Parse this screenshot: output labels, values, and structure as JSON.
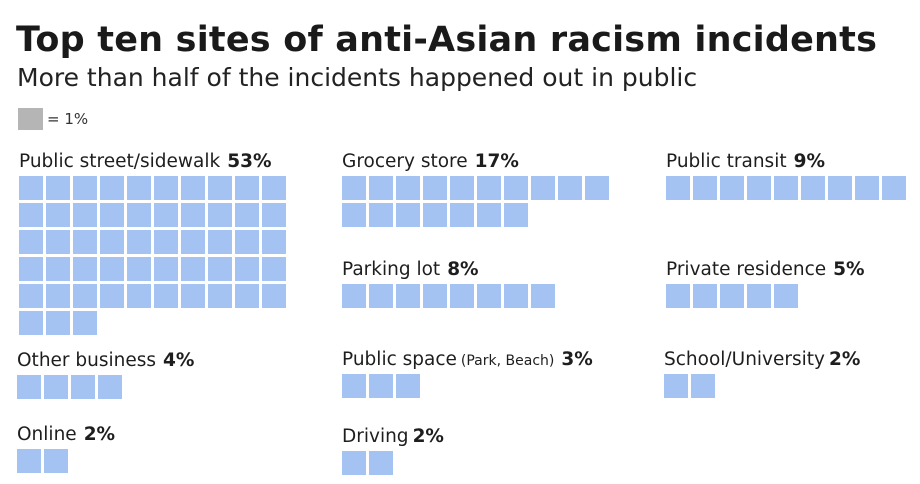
{
  "title": "Top ten sites of anti-Asian racism incidents",
  "subtitle": "More than half of the incidents happened out in public",
  "legend": {
    "swatch_color": "#b5b5b5",
    "text": "= 1%"
  },
  "square_color": "#a4c2f2",
  "chart_data": {
    "type": "waffle",
    "title": "Top ten sites of anti-Asian racism incidents",
    "subtitle": "More than half of the incidents happened out in public",
    "unit": "1 square = 1%",
    "categories": [
      {
        "label": "Public street/sidewalk",
        "note": "",
        "pct_label": "53%",
        "value": 53
      },
      {
        "label": "Grocery store",
        "note": "",
        "pct_label": "17%",
        "value": 17
      },
      {
        "label": "Public transit",
        "note": "",
        "pct_label": "9%",
        "value": 9
      },
      {
        "label": "Parking lot",
        "note": "",
        "pct_label": "8%",
        "value": 8
      },
      {
        "label": "Private residence",
        "note": "",
        "pct_label": "5%",
        "value": 5
      },
      {
        "label": "Other business",
        "note": "",
        "pct_label": "4%",
        "value": 4
      },
      {
        "label": "Public space",
        "note": "(Park, Beach)",
        "pct_label": "3%",
        "value": 3
      },
      {
        "label": "School/University",
        "note": "",
        "pct_label": "2%",
        "value": 2
      },
      {
        "label": "Online",
        "note": "",
        "pct_label": "2%",
        "value": 2
      },
      {
        "label": "Driving",
        "note": "",
        "pct_label": "2%",
        "value": 2
      }
    ]
  }
}
